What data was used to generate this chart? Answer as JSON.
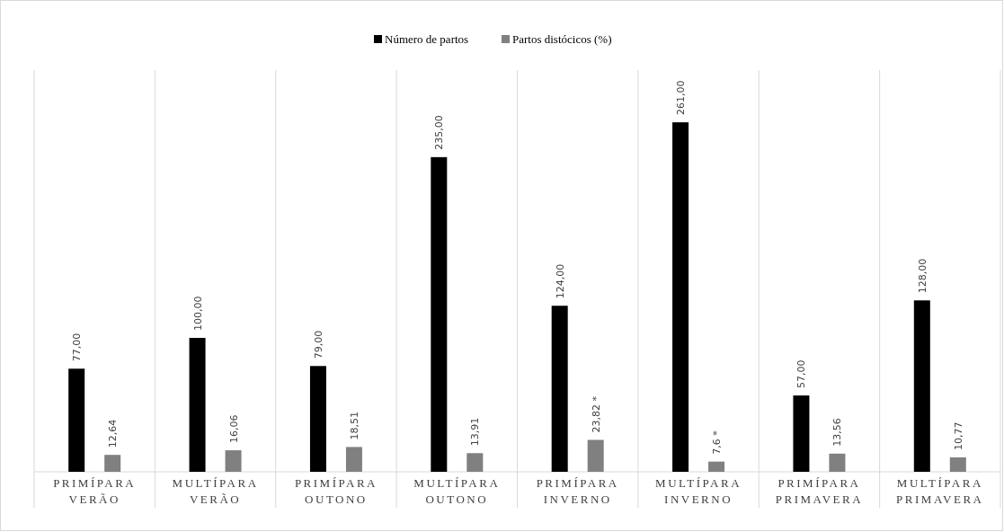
{
  "chart_data": {
    "type": "bar",
    "categories": [
      "PRIMÍPARA VERÃO",
      "MULTÍPARA VERÃO",
      "PRIMÍPARA OUTONO",
      "MULTÍPARA OUTONO",
      "PRIMÍPARA INVERNO",
      "MULTÍPARA INVERNO",
      "PRIMÍPARA PRIMAVERA",
      "MULTÍPARA PRIMAVERA"
    ],
    "series": [
      {
        "name": "Número de partos",
        "color": "#000000",
        "values": [
          77,
          100,
          79,
          235,
          124,
          261,
          57,
          128
        ],
        "value_labels": [
          "77,00",
          "100,00",
          "79,00",
          "235,00",
          "124,00",
          "261,00",
          "57,00",
          "128,00"
        ]
      },
      {
        "name": "Partos distócicos (%)",
        "color": "#808080",
        "values": [
          12.64,
          16.06,
          18.51,
          13.91,
          23.82,
          7.6,
          13.56,
          10.77
        ],
        "value_labels": [
          "12,64",
          "16,06",
          "18,51",
          "13,91",
          "23,82 *",
          "7,6 *",
          "13,56",
          "10,77"
        ]
      }
    ],
    "ylim": [
      0,
      300
    ],
    "legend": "top"
  }
}
